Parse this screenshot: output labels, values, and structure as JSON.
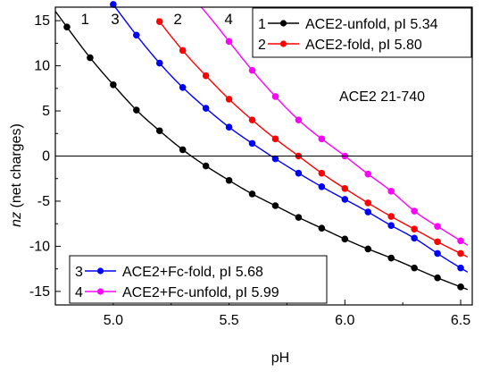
{
  "chart_data": {
    "type": "line",
    "annotation": "ACE2 21-740",
    "xlabel": "pH",
    "ylabel_italic": "nz",
    "ylabel_rest": " (net charges)",
    "xlim": [
      4.75,
      6.55
    ],
    "ylim": [
      -16.5,
      16.5
    ],
    "xticks": [
      5.0,
      5.5,
      6.0,
      6.5
    ],
    "xtick_labels": [
      "5.0",
      "5.5",
      "6.0",
      "6.5"
    ],
    "yticks": [
      -15,
      -10,
      -5,
      0,
      5,
      10,
      15
    ],
    "ytick_labels": [
      "-15",
      "-10",
      "-5",
      "0",
      "5",
      "10",
      "15"
    ],
    "reference_line_y": 0,
    "grid": false,
    "legends": [
      {
        "placement": "top-right",
        "entries": [
          0,
          1
        ]
      },
      {
        "placement": "bottom-left",
        "entries": [
          2,
          3
        ]
      }
    ],
    "series": [
      {
        "number": "1",
        "name": "ACE2-unfold,  pI 5.34",
        "color": "#000000",
        "x": [
          4.8,
          4.9,
          5.0,
          5.1,
          5.2,
          5.3,
          5.4,
          5.5,
          5.6,
          5.7,
          5.8,
          5.9,
          6.0,
          6.1,
          6.2,
          6.3,
          6.4,
          6.5
        ],
        "y": [
          14.3,
          10.9,
          7.9,
          5.1,
          2.8,
          0.7,
          -1.1,
          -2.7,
          -4.2,
          -5.5,
          -6.8,
          -8.0,
          -9.2,
          -10.3,
          -11.3,
          -12.4,
          -13.5,
          -14.5
        ],
        "curve_x_range": [
          4.75,
          6.53
        ],
        "number_label_x": 4.86,
        "number_label_y": 15.2
      },
      {
        "number": "2",
        "name": "ACE2-fold,  pI 5.80",
        "color": "#ff0000",
        "x": [
          5.2,
          5.3,
          5.4,
          5.5,
          5.6,
          5.7,
          5.8,
          5.9,
          6.0,
          6.1,
          6.2,
          6.3,
          6.4,
          6.5
        ],
        "y": [
          14.9,
          11.7,
          8.9,
          6.3,
          4.0,
          1.9,
          0.0,
          -1.9,
          -3.6,
          -5.2,
          -6.7,
          -8.1,
          -9.5,
          -10.8
        ],
        "curve_x_range": [
          5.19,
          6.53
        ],
        "number_label_x": 5.26,
        "number_label_y": 15.2
      },
      {
        "number": "3",
        "name": "ACE2+Fc-fold,  pI 5.68",
        "color": "#0000ff",
        "x": [
          5.0,
          5.1,
          5.2,
          5.3,
          5.4,
          5.5,
          5.6,
          5.7,
          5.8,
          5.9,
          6.0,
          6.1,
          6.2,
          6.3,
          6.4,
          6.5
        ],
        "y": [
          16.8,
          13.4,
          10.3,
          7.6,
          5.3,
          3.2,
          1.4,
          -0.3,
          -1.9,
          -3.4,
          -4.8,
          -6.2,
          -7.7,
          -9.1,
          -10.8,
          -12.4
        ],
        "curve_x_range": [
          5.0,
          6.53
        ],
        "number_label_x": 4.99,
        "number_label_y": 15.2
      },
      {
        "number": "4",
        "name": "ACE2+Fc-unfold,  pI 5.99",
        "color": "#ff00ff",
        "x": [
          5.5,
          5.6,
          5.7,
          5.8,
          5.9,
          6.0,
          6.1,
          6.2,
          6.3,
          6.4,
          6.5
        ],
        "y": [
          12.7,
          9.5,
          6.6,
          4.0,
          1.9,
          0.0,
          -2.0,
          -3.9,
          -6.1,
          -7.8,
          -9.4
        ],
        "curve_x_range": [
          5.38,
          6.53
        ],
        "number_label_x": 5.48,
        "number_label_y": 15.2
      }
    ]
  }
}
